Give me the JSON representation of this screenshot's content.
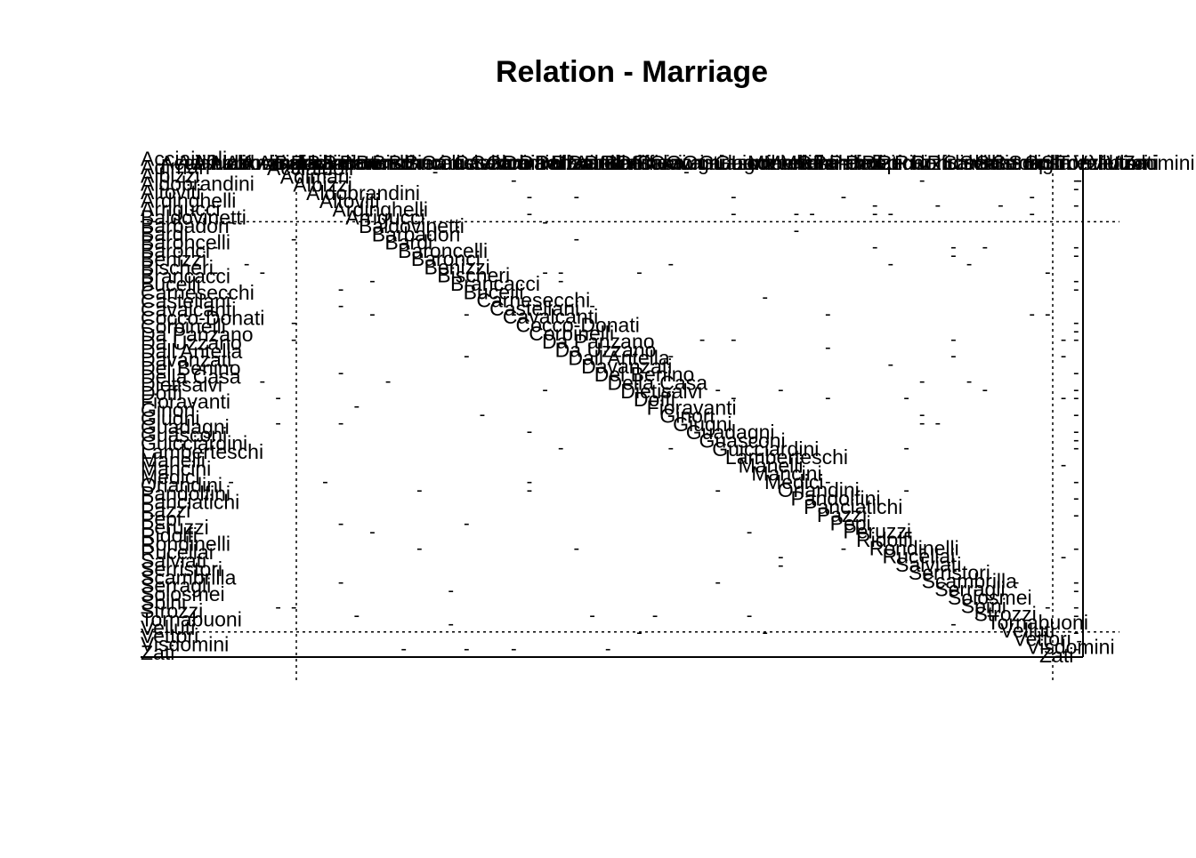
{
  "chart_data": {
    "type": "heatmap",
    "title": "Relation -  Marriage",
    "row_labels": [
      "Acciaiuoli",
      "Adimari",
      "Albizzi",
      "Aldobrandini",
      "Altoviti",
      "Ardinghelli",
      "Arrigucci",
      "Baldovinetti",
      "Barbadori",
      "Bardi",
      "Baroncelli",
      "Baronci",
      "Benizzi",
      "Bischeri",
      "Brancacci",
      "Bucelli",
      "Carnesecchi",
      "Castellani",
      "Cavalcanti",
      "Cocco-Donati",
      "Corbinelli",
      "Da Panzano",
      "Da Uzzano",
      "Dall'Antella",
      "Davanzati",
      "Del Benino",
      "Della Casa",
      "Dietisalvi",
      "Doffi",
      "Fioravanti",
      "Ginori",
      "Giugni",
      "Guadagni",
      "Guasconi",
      "Guicciardini",
      "Lamberteschi",
      "Manelli",
      "Mancini",
      "Medici",
      "Orlandini",
      "Pandolfini",
      "Panciatichi",
      "Pazzi",
      "Pepi",
      "Peruzzi",
      "Ridolfi",
      "Rondinelli",
      "Rucellai",
      "Salviati",
      "Serristori",
      "Scambrilla",
      "Serragli",
      "Solosmei",
      "Spini",
      "Strozzi",
      "Tornabuoni",
      "Velluti",
      "Vettori",
      "Visdomini",
      "Zati"
    ],
    "col_labels": [
      "Acciaiuoli",
      "Adimari",
      "Albizzi",
      "Aldobrandini",
      "Altoviti",
      "Ardinghelli",
      "Arrigucci",
      "Baldovinetti",
      "Barbadori",
      "Bardi",
      "Baroncelli",
      "Baronci",
      "Benizzi",
      "Bischeri",
      "Brancacci",
      "Bucelli",
      "Carnesecchi",
      "Castellani",
      "Cavalcanti",
      "Cocco-Donati",
      "Corbinelli",
      "Da Panzano",
      "Da Uzzano",
      "Dall'Antella",
      "Davanzati",
      "Del Benino",
      "Della Casa",
      "Dietisalvi",
      "Doffi",
      "Fioravanti",
      "Ginori",
      "Giugni",
      "Guadagni",
      "Guasconi",
      "Guicciardini",
      "Lamberteschi",
      "Manelli",
      "Mancini",
      "Medici",
      "Orlandini",
      "Pandolfini",
      "Panciatichi",
      "Pazzi",
      "Pepi",
      "Peruzzi",
      "Ridolfi",
      "Rondinelli",
      "Rucellai",
      "Salviati",
      "Serristori",
      "Scambrilla",
      "Serragli",
      "Solosmei",
      "Spini",
      "Strozzi",
      "Tornabuoni",
      "Velluti",
      "Vettori",
      "Visdomini",
      "Zati"
    ],
    "row_blocks": [
      8,
      49,
      3
    ],
    "grid": false,
    "cell_mark": "-",
    "density": 0.035,
    "seed": 7
  }
}
